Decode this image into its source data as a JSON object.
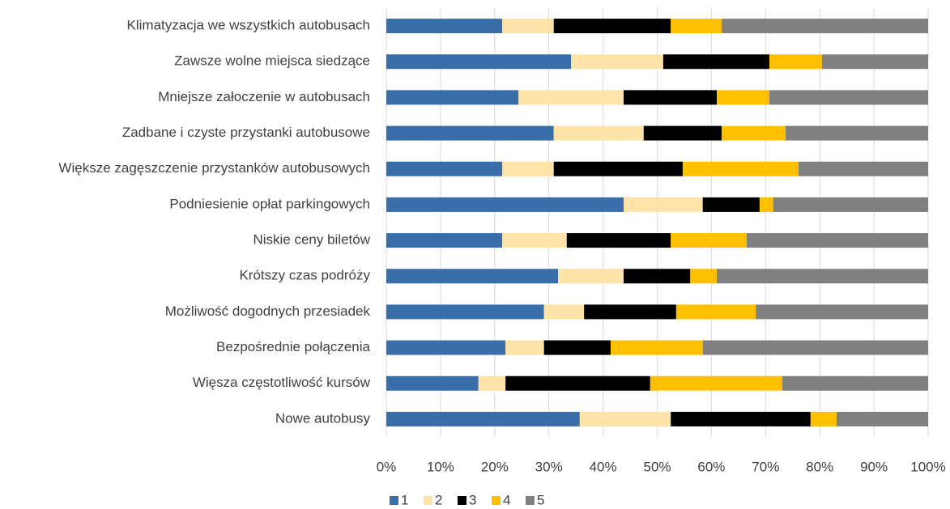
{
  "chart_data": {
    "type": "stacked-bar-horizontal",
    "categories": [
      "Klimatyzacja we wszystkich autobusach",
      "Zawsze wolne miejsca siedzące",
      "Mniejsze załoczenie w autobusach",
      "Zadbane i czyste przystanki autobusowe",
      "Większe zagęszczenie przystanków autobusowych",
      "Podniesienie opłat parkingowych",
      "Niskie ceny biletów",
      "Krótszy czas podróży",
      "Możliwość dogodnych przesiadek",
      "Bezpośrednie połączenia",
      "Więsza częstotliwość kursów",
      "Nowe autobusy"
    ],
    "series": [
      {
        "name": "1",
        "color": "#3a6ea8",
        "values": [
          21.4,
          34.1,
          24.4,
          30.9,
          21.4,
          43.8,
          21.4,
          31.7,
          29.1,
          22.0,
          17.0,
          35.7
        ]
      },
      {
        "name": "2",
        "color": "#fde3a7",
        "values": [
          9.5,
          17.0,
          19.4,
          16.6,
          9.5,
          14.6,
          11.9,
          12.1,
          7.4,
          7.1,
          5.0,
          16.8
        ]
      },
      {
        "name": "3",
        "color": "#000000",
        "values": [
          21.6,
          19.6,
          17.2,
          14.4,
          23.8,
          10.5,
          19.2,
          12.3,
          17.0,
          12.3,
          26.7,
          25.8
        ]
      },
      {
        "name": "4",
        "color": "#ffc000",
        "values": [
          9.4,
          9.7,
          9.7,
          11.8,
          21.4,
          2.5,
          14.0,
          4.9,
          14.7,
          17.0,
          24.4,
          4.8
        ]
      },
      {
        "name": "5",
        "color": "#808080",
        "values": [
          38.1,
          19.6,
          29.3,
          26.3,
          23.9,
          28.6,
          33.5,
          39.0,
          31.8,
          41.6,
          26.9,
          16.9
        ]
      }
    ],
    "xlim": [
      0,
      100
    ],
    "xticks": [
      {
        "value": 0,
        "label": "0%"
      },
      {
        "value": 10,
        "label": "10%"
      },
      {
        "value": 20,
        "label": "20%"
      },
      {
        "value": 30,
        "label": "30%"
      },
      {
        "value": 40,
        "label": "40%"
      },
      {
        "value": 50,
        "label": "50%"
      },
      {
        "value": 60,
        "label": "60%"
      },
      {
        "value": 70,
        "label": "70%"
      },
      {
        "value": 80,
        "label": "80%"
      },
      {
        "value": 90,
        "label": "90%"
      },
      {
        "value": 100,
        "label": "100%"
      }
    ],
    "grid": true,
    "legend": "bottom"
  }
}
